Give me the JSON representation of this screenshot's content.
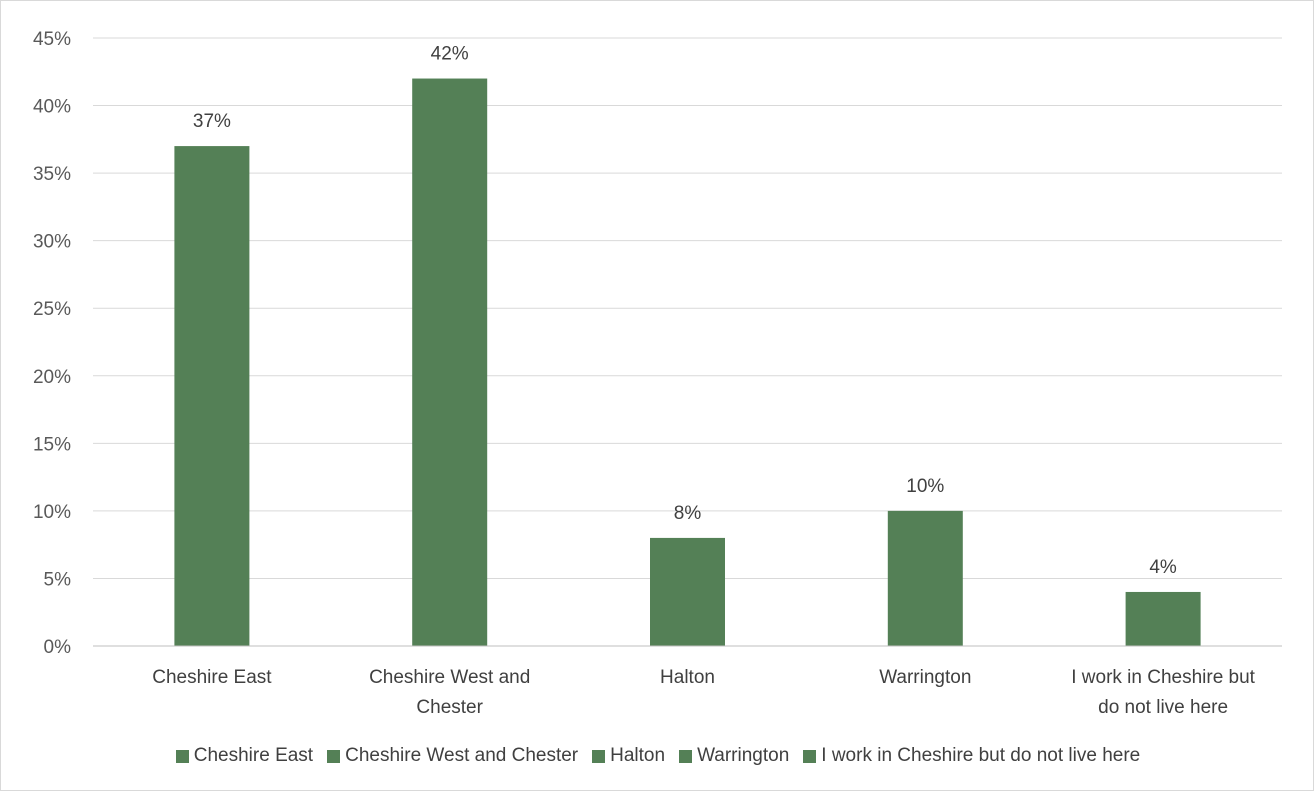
{
  "chart_data": {
    "type": "bar",
    "categories": [
      "Cheshire East",
      "Cheshire West and Chester",
      "Halton",
      "Warrington",
      "I work in Cheshire but do not live here"
    ],
    "category_label_lines": [
      [
        "Cheshire East"
      ],
      [
        "Cheshire West and",
        "Chester"
      ],
      [
        "Halton"
      ],
      [
        "Warrington"
      ],
      [
        "I work in Cheshire but",
        "do not live here"
      ]
    ],
    "values": [
      37,
      42,
      8,
      10,
      4
    ],
    "data_labels": [
      "37%",
      "42%",
      "8%",
      "10%",
      "4%"
    ],
    "yticks": [
      "0%",
      "5%",
      "10%",
      "15%",
      "20%",
      "25%",
      "30%",
      "35%",
      "40%",
      "45%"
    ],
    "ylim": [
      0,
      45
    ],
    "grid": true,
    "legend_position": "bottom",
    "legend": [
      "Cheshire East",
      "Cheshire West and Chester",
      "Halton",
      "Warrington",
      "I work in Cheshire but do not live here"
    ],
    "bar_color": "#548056",
    "title": "",
    "xlabel": "",
    "ylabel": ""
  }
}
